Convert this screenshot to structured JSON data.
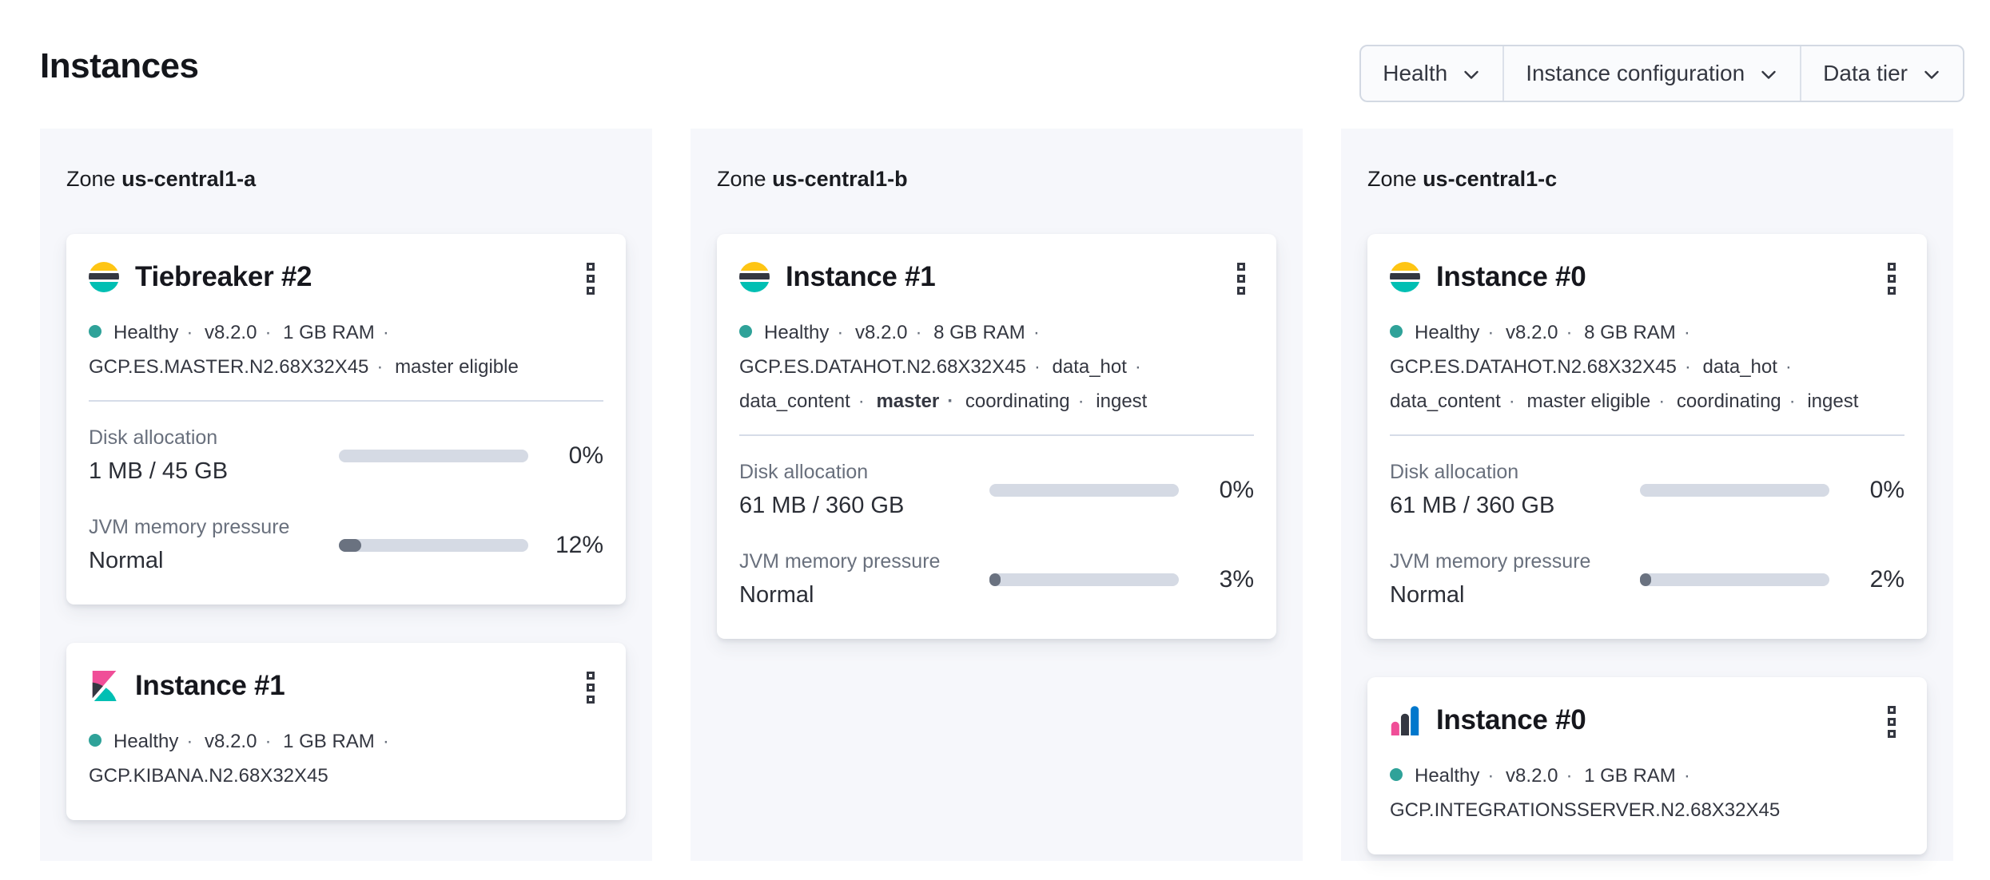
{
  "page": {
    "title": "Instances"
  },
  "filters": [
    {
      "label": "Health"
    },
    {
      "label": "Instance configuration"
    },
    {
      "label": "Data tier"
    }
  ],
  "colors": {
    "healthy_dot": "#2FA299",
    "panel_background": "#F6F7FB",
    "progress_track": "#D5DAE4",
    "progress_fill": "#6A7280",
    "elastic_yellow": "#FEC514",
    "elastic_teal": "#00BFB3",
    "elastic_pink": "#F04E98",
    "elastic_blue": "#0077CC",
    "elastic_dark": "#343741"
  },
  "zones": [
    {
      "label_prefix": "Zone",
      "name": "us-central1-a",
      "cards": [
        {
          "logo": "elasticsearch",
          "title": "Tiebreaker #2",
          "status_tokens": [
            {
              "text": "Healthy",
              "health": true
            },
            {
              "text": "v8.2.0"
            },
            {
              "text": "1 GB RAM"
            },
            {
              "text": "GCP.ES.MASTER.N2.68X32X45"
            },
            {
              "text": "master eligible"
            }
          ],
          "stats": [
            {
              "label": "Disk allocation",
              "value": "1 MB / 45 GB",
              "percent": "0%",
              "percent_value": 0
            },
            {
              "label": "JVM memory pressure",
              "value": "Normal",
              "percent": "12%",
              "percent_value": 12
            }
          ]
        },
        {
          "logo": "kibana",
          "title": "Instance #1",
          "status_tokens": [
            {
              "text": "Healthy",
              "health": true
            },
            {
              "text": "v8.2.0"
            },
            {
              "text": "1 GB RAM"
            },
            {
              "text": "GCP.KIBANA.N2.68X32X45"
            }
          ]
        }
      ]
    },
    {
      "label_prefix": "Zone",
      "name": "us-central1-b",
      "cards": [
        {
          "logo": "elasticsearch",
          "title": "Instance #1",
          "status_tokens": [
            {
              "text": "Healthy",
              "health": true
            },
            {
              "text": "v8.2.0"
            },
            {
              "text": "8 GB RAM"
            },
            {
              "text": "GCP.ES.DATAHOT.N2.68X32X45"
            },
            {
              "text": "data_hot"
            },
            {
              "text": "data_content"
            },
            {
              "text": "master",
              "bold": true
            },
            {
              "text": "coordinating"
            },
            {
              "text": "ingest"
            }
          ],
          "stats": [
            {
              "label": "Disk allocation",
              "value": "61 MB / 360 GB",
              "percent": "0%",
              "percent_value": 0
            },
            {
              "label": "JVM memory pressure",
              "value": "Normal",
              "percent": "3%",
              "percent_value": 3
            }
          ]
        }
      ]
    },
    {
      "label_prefix": "Zone",
      "name": "us-central1-c",
      "cards": [
        {
          "logo": "elasticsearch",
          "title": "Instance #0",
          "status_tokens": [
            {
              "text": "Healthy",
              "health": true
            },
            {
              "text": "v8.2.0"
            },
            {
              "text": "8 GB RAM"
            },
            {
              "text": "GCP.ES.DATAHOT.N2.68X32X45"
            },
            {
              "text": "data_hot"
            },
            {
              "text": "data_content"
            },
            {
              "text": "master eligible"
            },
            {
              "text": "coordinating"
            },
            {
              "text": "ingest"
            }
          ],
          "stats": [
            {
              "label": "Disk allocation",
              "value": "61 MB / 360 GB",
              "percent": "0%",
              "percent_value": 0
            },
            {
              "label": "JVM memory pressure",
              "value": "Normal",
              "percent": "2%",
              "percent_value": 2
            }
          ]
        },
        {
          "logo": "integrations-server",
          "title": "Instance #0",
          "status_tokens": [
            {
              "text": "Healthy",
              "health": true
            },
            {
              "text": "v8.2.0"
            },
            {
              "text": "1 GB RAM"
            },
            {
              "text": "GCP.INTEGRATIONSSERVER.N2.68X32X45"
            }
          ]
        }
      ]
    }
  ]
}
